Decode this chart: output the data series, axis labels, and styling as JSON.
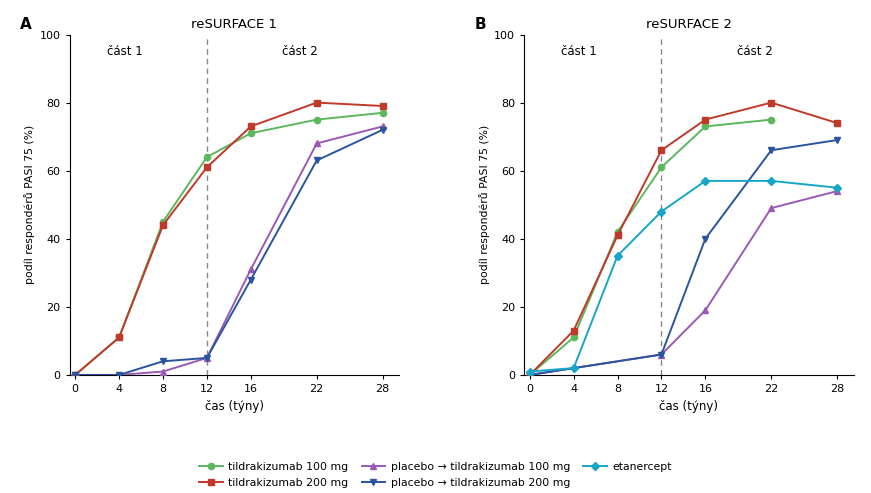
{
  "panel_A": {
    "title": "reSURFACE 1",
    "weeks": [
      0,
      4,
      8,
      12,
      16,
      22,
      28
    ],
    "tildra100": [
      0,
      11,
      45,
      64,
      71,
      75,
      77
    ],
    "tildra200": [
      0,
      11,
      44,
      61,
      73,
      80,
      79
    ],
    "placebo_tildra100": [
      0,
      0,
      1,
      5,
      31,
      68,
      73
    ],
    "placebo_tildra200": [
      0,
      0,
      4,
      5,
      28,
      63,
      72
    ]
  },
  "panel_B": {
    "title": "reSURFACE 2",
    "weeks": [
      0,
      4,
      8,
      12,
      16,
      22,
      28
    ],
    "tildra100": [
      0,
      11,
      42,
      61,
      73,
      75,
      null
    ],
    "tildra200": [
      0,
      13,
      41,
      66,
      75,
      80,
      74
    ],
    "placebo_tildra100": [
      0,
      null,
      null,
      6,
      19,
      49,
      54
    ],
    "placebo_tildra200": [
      0,
      null,
      null,
      6,
      40,
      66,
      69
    ],
    "etanercept": [
      1,
      2,
      35,
      48,
      57,
      57,
      55
    ]
  },
  "colors": {
    "tildra100": "#5cb85c",
    "tildra200": "#c0392b",
    "placebo_tildra100": "#9b59b6",
    "placebo_tildra200": "#2955a0",
    "etanercept": "#17a5c8"
  },
  "ylabel": "podíl respondérů PASI 75 (%)",
  "xlabel": "čas (týny)",
  "yticks": [
    0,
    20,
    40,
    60,
    80,
    100
  ],
  "xticks": [
    0,
    4,
    8,
    12,
    16,
    22,
    28
  ],
  "dashed_x": 12,
  "cast1_label": "část 1",
  "cast2_label": "část 2",
  "legend_entries": [
    "tildrakizumab 100 mg",
    "tildrakizumab 200 mg",
    "placebo → tildrakizumab 100 mg",
    "placebo → tildrakizumab 200 mg",
    "etanercept"
  ],
  "figsize": [
    8.71,
    4.93
  ],
  "dpi": 100
}
